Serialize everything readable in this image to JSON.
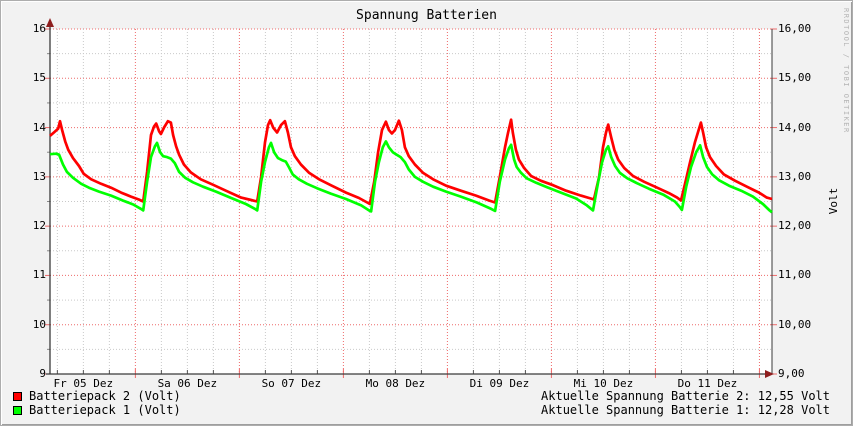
{
  "title": "Spannung Batterien",
  "watermark": "RRDTOOL / TOBI OETIKER",
  "y_axis": {
    "unit": "Volt",
    "left_ticks": [
      {
        "v": 16,
        "label": "16"
      },
      {
        "v": 15,
        "label": "15"
      },
      {
        "v": 14,
        "label": "14"
      },
      {
        "v": 13,
        "label": "13"
      },
      {
        "v": 12,
        "label": "12"
      },
      {
        "v": 11,
        "label": "11"
      },
      {
        "v": 10,
        "label": "10"
      },
      {
        "v": 9,
        "label": "9"
      }
    ],
    "right_ticks": [
      {
        "v": 16,
        "label": "16,00"
      },
      {
        "v": 15,
        "label": "15,00"
      },
      {
        "v": 14,
        "label": "14,00"
      },
      {
        "v": 13,
        "label": "13,00"
      },
      {
        "v": 12,
        "label": "12,00"
      },
      {
        "v": 11,
        "label": "11,00"
      },
      {
        "v": 10,
        "label": "10,00"
      },
      {
        "v": 9,
        "label": "9,00"
      }
    ]
  },
  "legend": [
    {
      "label": "Batteriepack 2 (Volt)",
      "color": "#ff0000"
    },
    {
      "label": "Batteriepack 1 (Volt)",
      "color": "#00ff00"
    }
  ],
  "status": [
    "Aktuelle Spannung Batterie 2: 12,55 Volt",
    "Aktuelle Spannung Batterie 1: 12,28 Volt"
  ],
  "colors": {
    "major_grid": "#ee6a6a",
    "minor_grid": "#c9c9c9",
    "axis": "#3a3a3a",
    "arrow": "#8f1f1f",
    "plot_bg": "#ffffff"
  },
  "chart_data": {
    "type": "line",
    "title": "Spannung Batterien",
    "ylabel": "Volt",
    "ylim": [
      9,
      16
    ],
    "x_unit": "hours from plot start (plot starts Fr 05 Dez ~04:20)",
    "x_range": [
      0,
      166.6
    ],
    "grid": {
      "y_major_step": 1,
      "y_minor_step": 0.5,
      "x_minor_step_hours": 6,
      "x_major_step_hours": 24
    },
    "midnights_t": [
      19.7,
      43.7,
      67.7,
      91.7,
      115.7,
      139.7,
      163.7
    ],
    "days": [
      {
        "label": "Fr 05 Dez",
        "noon_t": 7.7
      },
      {
        "label": "Sa 06 Dez",
        "noon_t": 31.7
      },
      {
        "label": "So 07 Dez",
        "noon_t": 55.7
      },
      {
        "label": "Mo 08 Dez",
        "noon_t": 79.7
      },
      {
        "label": "Di 09 Dez",
        "noon_t": 103.7
      },
      {
        "label": "Mi 10 Dez",
        "noon_t": 127.7
      },
      {
        "label": "Do 11 Dez",
        "noon_t": 151.7
      }
    ],
    "series": [
      {
        "name": "Batteriepack 2 (Volt)",
        "color": "#ff0000",
        "current": "12,55 Volt",
        "points": [
          [
            0,
            13.83
          ],
          [
            0.9,
            13.9
          ],
          [
            1.9,
            13.98
          ],
          [
            2.3,
            14.13
          ],
          [
            2.8,
            13.95
          ],
          [
            3.5,
            13.72
          ],
          [
            4.2,
            13.55
          ],
          [
            5.3,
            13.38
          ],
          [
            6.7,
            13.22
          ],
          [
            7.8,
            13.06
          ],
          [
            9.5,
            12.95
          ],
          [
            11.8,
            12.86
          ],
          [
            14.1,
            12.78
          ],
          [
            16.4,
            12.68
          ],
          [
            18.7,
            12.6
          ],
          [
            20.5,
            12.54
          ],
          [
            21.5,
            12.5
          ],
          [
            22.4,
            13.1
          ],
          [
            23.3,
            13.85
          ],
          [
            24,
            14.02
          ],
          [
            24.5,
            14.08
          ],
          [
            25.2,
            13.92
          ],
          [
            25.6,
            13.87
          ],
          [
            26.3,
            14
          ],
          [
            27.2,
            14.13
          ],
          [
            27.9,
            14.1
          ],
          [
            28.4,
            13.85
          ],
          [
            29.1,
            13.62
          ],
          [
            29.8,
            13.45
          ],
          [
            30.9,
            13.25
          ],
          [
            32.5,
            13.09
          ],
          [
            34.8,
            12.95
          ],
          [
            37.6,
            12.84
          ],
          [
            40.6,
            12.72
          ],
          [
            44.1,
            12.58
          ],
          [
            46.4,
            12.53
          ],
          [
            47.8,
            12.5
          ],
          [
            48.7,
            13
          ],
          [
            49.6,
            13.7
          ],
          [
            50.3,
            14.05
          ],
          [
            50.8,
            14.15
          ],
          [
            51.5,
            14
          ],
          [
            52.4,
            13.9
          ],
          [
            53.3,
            14.05
          ],
          [
            54.2,
            14.13
          ],
          [
            54.9,
            13.9
          ],
          [
            55.6,
            13.6
          ],
          [
            56.5,
            13.42
          ],
          [
            57.9,
            13.25
          ],
          [
            59.8,
            13.08
          ],
          [
            62.1,
            12.95
          ],
          [
            64.8,
            12.83
          ],
          [
            68.3,
            12.68
          ],
          [
            71.3,
            12.57
          ],
          [
            73.2,
            12.48
          ],
          [
            73.8,
            12.45
          ],
          [
            74.8,
            12.9
          ],
          [
            75.7,
            13.5
          ],
          [
            76.6,
            13.95
          ],
          [
            77.5,
            14.12
          ],
          [
            78.2,
            13.95
          ],
          [
            78.9,
            13.88
          ],
          [
            79.6,
            13.95
          ],
          [
            80.5,
            14.14
          ],
          [
            81.2,
            13.95
          ],
          [
            81.9,
            13.6
          ],
          [
            82.8,
            13.42
          ],
          [
            84.2,
            13.25
          ],
          [
            86.1,
            13.08
          ],
          [
            88.4,
            12.95
          ],
          [
            91.4,
            12.82
          ],
          [
            94.8,
            12.72
          ],
          [
            98.3,
            12.62
          ],
          [
            101.3,
            12.52
          ],
          [
            102.7,
            12.48
          ],
          [
            103.8,
            13
          ],
          [
            105,
            13.6
          ],
          [
            105.7,
            13.9
          ],
          [
            106.4,
            14.16
          ],
          [
            106.8,
            13.9
          ],
          [
            107.5,
            13.55
          ],
          [
            108.2,
            13.35
          ],
          [
            109.4,
            13.18
          ],
          [
            111,
            13.02
          ],
          [
            113.3,
            12.92
          ],
          [
            116.1,
            12.83
          ],
          [
            119.1,
            12.72
          ],
          [
            122.5,
            12.62
          ],
          [
            124.8,
            12.56
          ],
          [
            125.5,
            12.54
          ],
          [
            126.7,
            13
          ],
          [
            127.6,
            13.6
          ],
          [
            128.3,
            13.9
          ],
          [
            128.8,
            14.06
          ],
          [
            129.5,
            13.8
          ],
          [
            130.2,
            13.55
          ],
          [
            131.1,
            13.35
          ],
          [
            132.5,
            13.18
          ],
          [
            134.5,
            13.02
          ],
          [
            137.1,
            12.9
          ],
          [
            140.1,
            12.78
          ],
          [
            142.8,
            12.67
          ],
          [
            144.7,
            12.58
          ],
          [
            145.6,
            12.52
          ],
          [
            146.5,
            12.85
          ],
          [
            147.7,
            13.3
          ],
          [
            148.8,
            13.7
          ],
          [
            149.5,
            13.9
          ],
          [
            150.2,
            14.1
          ],
          [
            150.7,
            13.9
          ],
          [
            151.4,
            13.6
          ],
          [
            152.3,
            13.4
          ],
          [
            153.7,
            13.22
          ],
          [
            155.5,
            13.05
          ],
          [
            158.1,
            12.92
          ],
          [
            160.8,
            12.8
          ],
          [
            163.6,
            12.68
          ],
          [
            165.4,
            12.58
          ],
          [
            166.6,
            12.55
          ]
        ]
      },
      {
        "name": "Batteriepack 1 (Volt)",
        "color": "#00ff00",
        "current": "12,28 Volt",
        "points": [
          [
            0,
            13.46
          ],
          [
            1.4,
            13.47
          ],
          [
            2.1,
            13.45
          ],
          [
            3,
            13.25
          ],
          [
            3.9,
            13.1
          ],
          [
            5.3,
            12.98
          ],
          [
            7.2,
            12.86
          ],
          [
            9,
            12.78
          ],
          [
            11.3,
            12.7
          ],
          [
            14.1,
            12.62
          ],
          [
            16.8,
            12.52
          ],
          [
            19.2,
            12.44
          ],
          [
            21,
            12.35
          ],
          [
            21.5,
            12.32
          ],
          [
            22.4,
            12.9
          ],
          [
            23.3,
            13.4
          ],
          [
            24.2,
            13.62
          ],
          [
            24.7,
            13.69
          ],
          [
            25.4,
            13.5
          ],
          [
            26.1,
            13.42
          ],
          [
            27,
            13.4
          ],
          [
            27.9,
            13.37
          ],
          [
            28.8,
            13.28
          ],
          [
            29.8,
            13.1
          ],
          [
            31.2,
            12.98
          ],
          [
            33,
            12.89
          ],
          [
            35.3,
            12.8
          ],
          [
            38.3,
            12.7
          ],
          [
            41.8,
            12.57
          ],
          [
            45.2,
            12.45
          ],
          [
            47.3,
            12.35
          ],
          [
            47.8,
            12.32
          ],
          [
            48.7,
            12.9
          ],
          [
            49.6,
            13.3
          ],
          [
            50.5,
            13.6
          ],
          [
            51,
            13.69
          ],
          [
            51.7,
            13.5
          ],
          [
            52.6,
            13.38
          ],
          [
            53.5,
            13.34
          ],
          [
            54.4,
            13.31
          ],
          [
            55.1,
            13.2
          ],
          [
            56,
            13.05
          ],
          [
            57.4,
            12.95
          ],
          [
            59.3,
            12.86
          ],
          [
            61.6,
            12.77
          ],
          [
            64.8,
            12.66
          ],
          [
            68.3,
            12.55
          ],
          [
            71.8,
            12.42
          ],
          [
            73.6,
            12.32
          ],
          [
            74.1,
            12.3
          ],
          [
            75,
            12.9
          ],
          [
            75.9,
            13.3
          ],
          [
            76.8,
            13.6
          ],
          [
            77.5,
            13.72
          ],
          [
            78.2,
            13.6
          ],
          [
            79.1,
            13.5
          ],
          [
            80,
            13.45
          ],
          [
            80.9,
            13.4
          ],
          [
            81.9,
            13.3
          ],
          [
            82.8,
            13.15
          ],
          [
            84.2,
            13
          ],
          [
            86.1,
            12.9
          ],
          [
            88.4,
            12.8
          ],
          [
            91.4,
            12.7
          ],
          [
            94.8,
            12.6
          ],
          [
            98.5,
            12.48
          ],
          [
            101.8,
            12.35
          ],
          [
            102.7,
            12.31
          ],
          [
            103.8,
            12.9
          ],
          [
            105,
            13.35
          ],
          [
            105.9,
            13.58
          ],
          [
            106.4,
            13.65
          ],
          [
            107.1,
            13.35
          ],
          [
            107.7,
            13.2
          ],
          [
            108.7,
            13.08
          ],
          [
            110,
            12.97
          ],
          [
            112.2,
            12.88
          ],
          [
            114.7,
            12.79
          ],
          [
            117.9,
            12.68
          ],
          [
            121.4,
            12.56
          ],
          [
            123.9,
            12.42
          ],
          [
            125.3,
            12.32
          ],
          [
            126.5,
            12.9
          ],
          [
            127.4,
            13.3
          ],
          [
            128.3,
            13.55
          ],
          [
            128.8,
            13.62
          ],
          [
            129.5,
            13.4
          ],
          [
            130.4,
            13.22
          ],
          [
            131.5,
            13.08
          ],
          [
            133.2,
            12.97
          ],
          [
            135.5,
            12.87
          ],
          [
            138.2,
            12.76
          ],
          [
            141.5,
            12.64
          ],
          [
            144.2,
            12.5
          ],
          [
            145.4,
            12.38
          ],
          [
            145.8,
            12.33
          ],
          [
            146.8,
            12.8
          ],
          [
            147.9,
            13.2
          ],
          [
            149.1,
            13.5
          ],
          [
            150,
            13.64
          ],
          [
            150.7,
            13.4
          ],
          [
            151.6,
            13.2
          ],
          [
            152.8,
            13.05
          ],
          [
            154.4,
            12.93
          ],
          [
            156.7,
            12.82
          ],
          [
            159.5,
            12.72
          ],
          [
            162.2,
            12.6
          ],
          [
            164.5,
            12.45
          ],
          [
            165.9,
            12.33
          ],
          [
            166.6,
            12.28
          ]
        ]
      }
    ]
  }
}
